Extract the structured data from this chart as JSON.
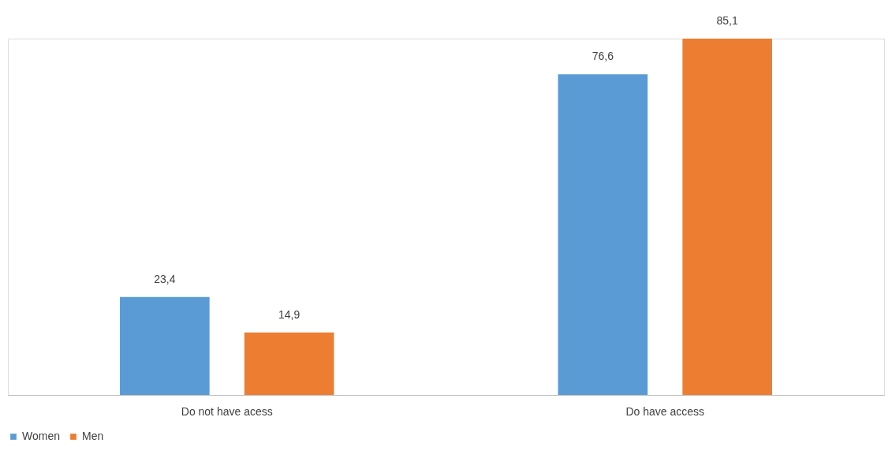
{
  "chart_data": {
    "type": "bar",
    "categories": [
      "Do not have acess",
      "Do have access"
    ],
    "series": [
      {
        "name": "Women",
        "color": "#5b9bd5",
        "values": [
          23.4,
          76.6
        ],
        "value_labels": [
          "23,4",
          "76,6"
        ]
      },
      {
        "name": "Men",
        "color": "#ed7d31",
        "values": [
          14.9,
          85.1
        ],
        "value_labels": [
          "14,9",
          "85,1"
        ]
      }
    ],
    "legend": "bottom",
    "grid": false
  }
}
